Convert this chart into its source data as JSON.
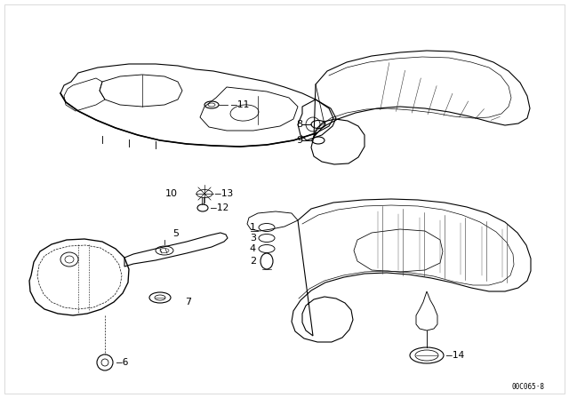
{
  "bg_color": "#ffffff",
  "line_color": "#000000",
  "fig_width": 6.4,
  "fig_height": 4.48,
  "dpi": 100,
  "watermark": "00C065·8"
}
